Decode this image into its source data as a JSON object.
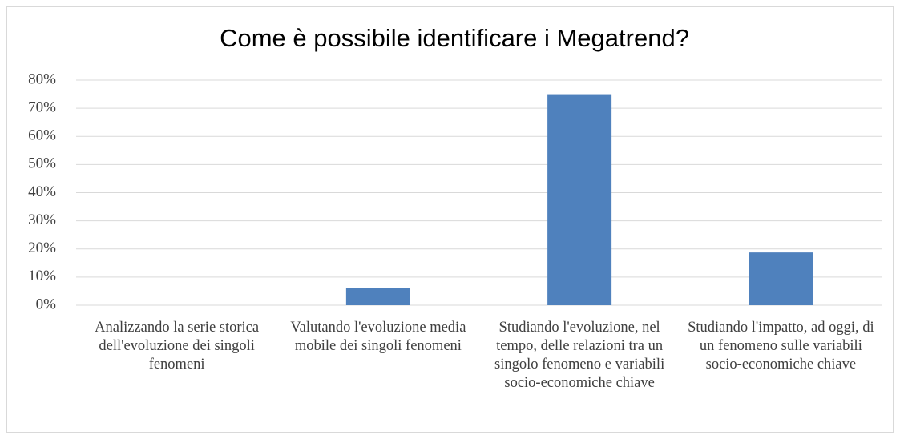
{
  "chart_data": {
    "type": "bar",
    "title": "Come è possibile identificare i Megatrend?",
    "categories": [
      "Analizzando la serie storica dell'evoluzione dei singoli fenomeni",
      "Valutando l'evoluzione media mobile dei singoli fenomeni",
      "Studiando l'evoluzione, nel tempo, delle relazioni tra un singolo fenomeno e variabili socio-economiche chiave",
      "Studiando l'impatto, ad oggi, di un fenomeno sulle variabili socio-economiche chiave"
    ],
    "values": [
      0,
      6.25,
      75,
      18.75
    ],
    "color": "#4f81bd",
    "ylim": [
      0,
      80
    ],
    "yticks": [
      {
        "value": 0,
        "label": "0%"
      },
      {
        "value": 10,
        "label": "10%"
      },
      {
        "value": 20,
        "label": "20%"
      },
      {
        "value": 30,
        "label": "30%"
      },
      {
        "value": 40,
        "label": "40%"
      },
      {
        "value": 50,
        "label": "50%"
      },
      {
        "value": 60,
        "label": "60%"
      },
      {
        "value": 70,
        "label": "70%"
      },
      {
        "value": 80,
        "label": "80%"
      }
    ],
    "grid": true
  }
}
